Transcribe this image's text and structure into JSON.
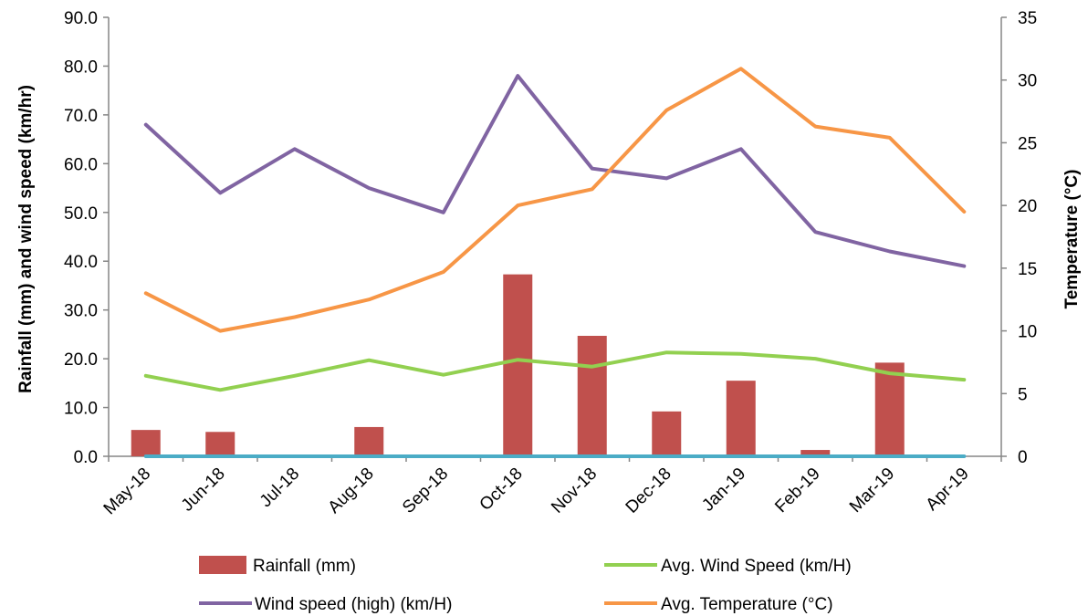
{
  "chart_data": {
    "type": "bar",
    "categories": [
      "May-18",
      "Jun-18",
      "Jul-18",
      "Aug-18",
      "Sep-18",
      "Oct-18",
      "Nov-18",
      "Dec-18",
      "Jan-19",
      "Feb-19",
      "Mar-19",
      "Apr-19"
    ],
    "y_left": {
      "label": "Rainfall (mm)  and wind speed (km/hr)",
      "ylim": [
        0,
        90
      ],
      "ticks": [
        "0.0",
        "10.0",
        "20.0",
        "30.0",
        "40.0",
        "50.0",
        "60.0",
        "70.0",
        "80.0",
        "90.0"
      ]
    },
    "y_right": {
      "label": "Temperature  (°C)",
      "ylim": [
        0,
        35
      ],
      "ticks": [
        "0",
        "5",
        "10",
        "15",
        "20",
        "25",
        "30",
        "35"
      ]
    },
    "series": [
      {
        "name": "Rainfall (mm)",
        "type": "bar",
        "axis": "left",
        "color": "#c0504d",
        "values": [
          5.4,
          5.0,
          0,
          6.0,
          0,
          37.3,
          24.7,
          9.2,
          15.5,
          1.3,
          19.2,
          0
        ]
      },
      {
        "name": "Avg. Wind Speed (km/H)",
        "type": "line",
        "axis": "left",
        "color": "#92d050",
        "values": [
          16.5,
          13.6,
          16.5,
          19.7,
          16.7,
          19.8,
          18.4,
          21.3,
          21.0,
          20.0,
          17.0,
          15.7
        ]
      },
      {
        "name": "Wind speed (high) (km/H)",
        "type": "line",
        "axis": "left",
        "color": "#8064a2",
        "values": [
          68.0,
          54.0,
          63.0,
          55.0,
          50.0,
          78.0,
          59.0,
          57.0,
          63.0,
          46.0,
          42.0,
          39.0
        ]
      },
      {
        "name": "Avg. Temperature (°C)",
        "type": "line",
        "axis": "right",
        "color": "#f79646",
        "values": [
          13.0,
          10.0,
          11.1,
          12.5,
          14.7,
          20.0,
          21.3,
          27.6,
          30.9,
          26.3,
          25.4,
          19.5
        ]
      },
      {
        "name": "",
        "type": "line",
        "axis": "left",
        "color": "#4bacc6",
        "values": [
          0,
          0,
          0,
          0,
          0,
          0,
          0,
          0,
          0,
          0,
          0,
          0
        ]
      }
    ],
    "legend": {
      "position": "bottom"
    },
    "grid": false
  }
}
